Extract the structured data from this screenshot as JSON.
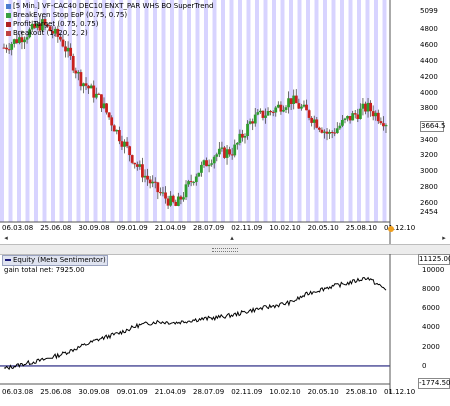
{
  "top_panel": {
    "legend": [
      {
        "text": "[5 Min.] VF-CAC40 DEC10   ENXT_PAR WHS BO SuperTrend",
        "color": "#4a7bd0"
      },
      {
        "text": "BreakEven Stop EoP  (0.75, 0.75)",
        "color": "#3aa040"
      },
      {
        "text": "Profit Target  (0.75, 0.75)",
        "color": "#b02020"
      },
      {
        "text": "Breakout  (1, 20, 2, 2)",
        "color": "#c04040"
      }
    ],
    "y_ticks": [
      "5099",
      "4800",
      "4600",
      "4400",
      "4200",
      "4000",
      "3800",
      "3600",
      "3400",
      "3200",
      "3000",
      "2800",
      "2600",
      "2454"
    ],
    "current_price": "3664.5",
    "x_ticks": [
      "06.03.08",
      "25.06.08",
      "30.09.08",
      "09.01.09",
      "21.04.09",
      "28.07.09",
      "02.11.09",
      "10.02.10",
      "20.05.10",
      "25.08.10",
      "01.12.10"
    ],
    "colors": {
      "band": "#d8d4ff",
      "band_alt": "#ffffff",
      "up": "#2e9c2e",
      "down": "#c8201e",
      "wick": "#4b4b4b"
    }
  },
  "scrollbar": {
    "left_arrow": "◂",
    "right_arrow": "▸",
    "mid_marker": "▴"
  },
  "bottom_panel": {
    "title": "Equity  (Meta Sentimentor)",
    "subtitle": "gain total net: 7925.00",
    "y_ticks": [
      "11125.00",
      "10000",
      "8000",
      "6000",
      "4000",
      "2000",
      "0",
      "-1774.50"
    ],
    "x_ticks": [
      "06.03.08",
      "25.06.08",
      "30.09.08",
      "09.01.09",
      "21.04.09",
      "28.07.09",
      "02.11.09",
      "10.02.10",
      "20.05.10",
      "25.08.10",
      "01.12.10"
    ],
    "colors": {
      "line": "#000000",
      "zero_line": "#1a1a7a"
    }
  },
  "chart_data": [
    {
      "type": "candlestick",
      "title": "[5 Min.] VF-CAC40 DEC10",
      "x_labels": [
        "06.03.08",
        "25.06.08",
        "30.09.08",
        "09.01.09",
        "21.04.09",
        "28.07.09",
        "02.11.09",
        "10.02.10",
        "20.05.10",
        "25.08.10",
        "01.12.10"
      ],
      "ylim": [
        2454,
        5099
      ],
      "series": [
        {
          "name": "VF-CAC40 DEC10",
          "x": [
            0,
            0.5,
            1,
            1.5,
            2,
            2.5,
            3,
            3.5,
            4,
            4.5,
            5,
            5.5,
            6,
            6.5,
            7,
            7.5,
            8,
            8.5,
            9,
            9.5,
            10
          ],
          "y": [
            4600,
            4750,
            4900,
            4700,
            4200,
            3950,
            3500,
            3100,
            2800,
            2600,
            3000,
            3250,
            3300,
            3700,
            3800,
            3950,
            3750,
            3500,
            3700,
            3850,
            3664.5
          ]
        }
      ]
    },
    {
      "type": "line",
      "title": "Equity (Meta Sentimentor)",
      "x_labels": [
        "06.03.08",
        "25.06.08",
        "30.09.08",
        "09.01.09",
        "21.04.09",
        "28.07.09",
        "02.11.09",
        "10.02.10",
        "20.05.10",
        "25.08.10",
        "01.12.10"
      ],
      "ylim": [
        -1774.5,
        11125
      ],
      "series": [
        {
          "name": "gain total net",
          "x": [
            0,
            0.5,
            1,
            1.5,
            2,
            2.5,
            3,
            3.5,
            4,
            4.5,
            5,
            5.5,
            6,
            6.5,
            7,
            7.5,
            8,
            8.5,
            9,
            9.5,
            10
          ],
          "y": [
            -300,
            200,
            600,
            1200,
            2000,
            2800,
            3400,
            4200,
            4600,
            4500,
            4800,
            5000,
            5300,
            5800,
            6200,
            6600,
            7600,
            8200,
            8600,
            9200,
            7925
          ]
        }
      ]
    }
  ]
}
